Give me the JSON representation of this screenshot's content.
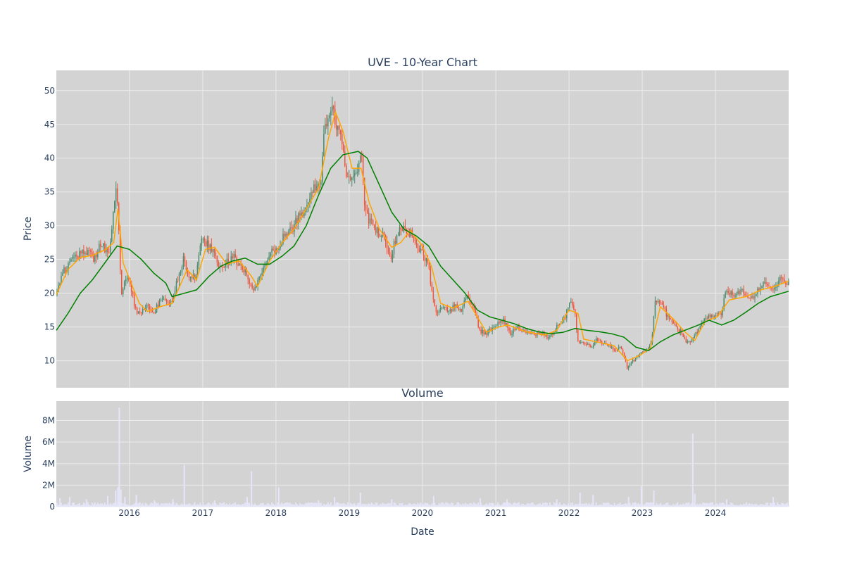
{
  "chart_data": [
    {
      "type": "candlestick",
      "title": "UVE - 10-Year Chart",
      "xlabel": "",
      "ylabel": "Price",
      "x_range": [
        "2015-01-02",
        "2024-12-31"
      ],
      "ylim": [
        6,
        53
      ],
      "y_ticks": [
        10,
        15,
        20,
        25,
        30,
        35,
        40,
        45,
        50
      ],
      "grid": true,
      "colors": {
        "plot_bg": "#d3d3d3",
        "grid": "#ebebeb",
        "increasing": "#4b8b6e",
        "decreasing": "#ef553b",
        "ma_short": "#ffa500",
        "ma_long": "#008000"
      },
      "price_path": [
        [
          "2015-01-02",
          19.8
        ],
        [
          "2015-02-15",
          23.5
        ],
        [
          "2015-03-15",
          24.5
        ],
        [
          "2015-04-15",
          25.5
        ],
        [
          "2015-05-15",
          26.2
        ],
        [
          "2015-06-15",
          26.0
        ],
        [
          "2015-07-15",
          25.0
        ],
        [
          "2015-08-15",
          27.5
        ],
        [
          "2015-09-15",
          26.0
        ],
        [
          "2015-10-01",
          27.0
        ],
        [
          "2015-10-20",
          33.0
        ],
        [
          "2015-11-01",
          36.0
        ],
        [
          "2015-11-10",
          31.0
        ],
        [
          "2015-11-25",
          20.0
        ],
        [
          "2015-12-15",
          22.5
        ],
        [
          "2016-01-10",
          21.5
        ],
        [
          "2016-02-01",
          17.5
        ],
        [
          "2016-03-01",
          17.0
        ],
        [
          "2016-04-01",
          18.5
        ],
        [
          "2016-05-01",
          17.0
        ],
        [
          "2016-06-01",
          18.5
        ],
        [
          "2016-07-01",
          19.0
        ],
        [
          "2016-08-01",
          18.5
        ],
        [
          "2016-09-01",
          22.0
        ],
        [
          "2016-10-01",
          25.0
        ],
        [
          "2016-11-01",
          22.0
        ],
        [
          "2016-12-01",
          22.5
        ],
        [
          "2017-01-01",
          28.0
        ],
        [
          "2017-02-01",
          27.0
        ],
        [
          "2017-03-01",
          26.5
        ],
        [
          "2017-04-01",
          23.5
        ],
        [
          "2017-05-01",
          24.5
        ],
        [
          "2017-06-01",
          25.5
        ],
        [
          "2017-07-01",
          24.5
        ],
        [
          "2017-08-01",
          23.5
        ],
        [
          "2017-08-20",
          22.0
        ],
        [
          "2017-09-15",
          20.5
        ],
        [
          "2017-10-15",
          22.5
        ],
        [
          "2017-11-15",
          24.0
        ],
        [
          "2017-12-15",
          26.0
        ],
        [
          "2018-01-15",
          26.5
        ],
        [
          "2018-02-15",
          28.5
        ],
        [
          "2018-03-15",
          29.0
        ],
        [
          "2018-04-15",
          30.5
        ],
        [
          "2018-05-15",
          32.0
        ],
        [
          "2018-06-15",
          33.5
        ],
        [
          "2018-07-15",
          35.5
        ],
        [
          "2018-08-15",
          36.0
        ],
        [
          "2018-09-01",
          44.5
        ],
        [
          "2018-10-01",
          45.5
        ],
        [
          "2018-10-15",
          49.0
        ],
        [
          "2018-11-01",
          44.0
        ],
        [
          "2018-12-01",
          43.0
        ],
        [
          "2018-12-20",
          38.0
        ],
        [
          "2019-01-20",
          37.5
        ],
        [
          "2019-02-20",
          39.0
        ],
        [
          "2019-03-10",
          41.0
        ],
        [
          "2019-03-25",
          32.0
        ],
        [
          "2019-05-01",
          30.0
        ],
        [
          "2019-06-01",
          29.0
        ],
        [
          "2019-07-01",
          28.0
        ],
        [
          "2019-08-01",
          25.5
        ],
        [
          "2019-09-01",
          29.0
        ],
        [
          "2019-10-01",
          29.5
        ],
        [
          "2019-11-01",
          29.0
        ],
        [
          "2019-12-01",
          28.0
        ],
        [
          "2020-01-01",
          26.0
        ],
        [
          "2020-02-01",
          24.5
        ],
        [
          "2020-02-20",
          20.0
        ],
        [
          "2020-03-15",
          17.0
        ],
        [
          "2020-04-15",
          18.0
        ],
        [
          "2020-05-15",
          17.5
        ],
        [
          "2020-06-15",
          18.0
        ],
        [
          "2020-07-15",
          17.5
        ],
        [
          "2020-08-15",
          19.5
        ],
        [
          "2020-09-15",
          18.0
        ],
        [
          "2020-10-15",
          14.5
        ],
        [
          "2020-11-15",
          14.0
        ],
        [
          "2020-12-15",
          14.8
        ],
        [
          "2021-01-15",
          15.3
        ],
        [
          "2021-02-15",
          16.0
        ],
        [
          "2021-03-15",
          14.0
        ],
        [
          "2021-04-15",
          15.0
        ],
        [
          "2021-05-15",
          14.5
        ],
        [
          "2021-06-15",
          14.0
        ],
        [
          "2021-07-15",
          13.8
        ],
        [
          "2021-08-15",
          14.0
        ],
        [
          "2021-09-15",
          13.5
        ],
        [
          "2021-10-15",
          14.0
        ],
        [
          "2021-11-15",
          15.5
        ],
        [
          "2021-12-15",
          16.5
        ],
        [
          "2022-01-10",
          19.0
        ],
        [
          "2022-02-01",
          17.5
        ],
        [
          "2022-02-20",
          12.5
        ],
        [
          "2022-03-20",
          12.5
        ],
        [
          "2022-04-20",
          12.0
        ],
        [
          "2022-05-20",
          13.0
        ],
        [
          "2022-06-20",
          12.5
        ],
        [
          "2022-07-20",
          12.5
        ],
        [
          "2022-08-20",
          11.5
        ],
        [
          "2022-09-20",
          12.0
        ],
        [
          "2022-10-20",
          9.0
        ],
        [
          "2022-11-20",
          10.0
        ],
        [
          "2022-12-20",
          11.0
        ],
        [
          "2023-01-20",
          11.5
        ],
        [
          "2023-02-20",
          12.5
        ],
        [
          "2023-03-10",
          19.0
        ],
        [
          "2023-04-10",
          18.5
        ],
        [
          "2023-05-10",
          16.5
        ],
        [
          "2023-06-10",
          15.5
        ],
        [
          "2023-07-10",
          14.5
        ],
        [
          "2023-08-10",
          13.0
        ],
        [
          "2023-09-10",
          13.0
        ],
        [
          "2023-10-10",
          14.5
        ],
        [
          "2023-11-10",
          16.5
        ],
        [
          "2023-12-10",
          16.5
        ],
        [
          "2024-01-10",
          17.0
        ],
        [
          "2024-02-01",
          16.5
        ],
        [
          "2024-02-20",
          20.0
        ],
        [
          "2024-03-20",
          20.0
        ],
        [
          "2024-04-20",
          20.0
        ],
        [
          "2024-05-20",
          20.5
        ],
        [
          "2024-06-20",
          19.0
        ],
        [
          "2024-07-20",
          20.0
        ],
        [
          "2024-08-20",
          21.0
        ],
        [
          "2024-09-20",
          21.5
        ],
        [
          "2024-10-20",
          20.5
        ],
        [
          "2024-11-20",
          22.5
        ],
        [
          "2024-12-31",
          21.5
        ]
      ],
      "ma_short": [
        [
          "2015-01-02",
          19.8
        ],
        [
          "2015-03-01",
          23.5
        ],
        [
          "2015-05-01",
          25.3
        ],
        [
          "2015-07-01",
          25.6
        ],
        [
          "2015-09-01",
          26.4
        ],
        [
          "2015-10-15",
          27.5
        ],
        [
          "2015-11-05",
          32.5
        ],
        [
          "2015-12-01",
          24.5
        ],
        [
          "2016-01-10",
          21.5
        ],
        [
          "2016-02-20",
          18.5
        ],
        [
          "2016-04-01",
          17.3
        ],
        [
          "2016-06-01",
          18.0
        ],
        [
          "2016-08-01",
          18.5
        ],
        [
          "2016-09-15",
          21.5
        ],
        [
          "2016-10-15",
          23.5
        ],
        [
          "2016-12-01",
          22.0
        ],
        [
          "2017-01-15",
          26.5
        ],
        [
          "2017-03-01",
          26.8
        ],
        [
          "2017-05-01",
          24.3
        ],
        [
          "2017-07-01",
          24.8
        ],
        [
          "2017-09-01",
          22.5
        ],
        [
          "2017-10-01",
          21.0
        ],
        [
          "2017-12-01",
          24.8
        ],
        [
          "2018-02-01",
          27.5
        ],
        [
          "2018-04-01",
          29.5
        ],
        [
          "2018-06-01",
          32.5
        ],
        [
          "2018-08-01",
          35.5
        ],
        [
          "2018-09-20",
          43.0
        ],
        [
          "2018-10-25",
          46.8
        ],
        [
          "2018-12-01",
          44.0
        ],
        [
          "2019-01-15",
          38.5
        ],
        [
          "2019-03-01",
          38.5
        ],
        [
          "2019-04-10",
          33.5
        ],
        [
          "2019-06-01",
          29.5
        ],
        [
          "2019-08-01",
          26.8
        ],
        [
          "2019-09-15",
          27.5
        ],
        [
          "2019-11-01",
          29.3
        ],
        [
          "2020-01-01",
          27.0
        ],
        [
          "2020-02-15",
          24.0
        ],
        [
          "2020-04-01",
          18.5
        ],
        [
          "2020-06-01",
          17.8
        ],
        [
          "2020-08-15",
          18.8
        ],
        [
          "2020-10-01",
          16.5
        ],
        [
          "2020-11-15",
          14.2
        ],
        [
          "2021-01-15",
          15.0
        ],
        [
          "2021-03-01",
          15.3
        ],
        [
          "2021-06-01",
          14.3
        ],
        [
          "2021-09-01",
          13.8
        ],
        [
          "2021-11-01",
          14.5
        ],
        [
          "2022-01-01",
          17.5
        ],
        [
          "2022-02-15",
          17.0
        ],
        [
          "2022-03-15",
          13.2
        ],
        [
          "2022-06-01",
          12.7
        ],
        [
          "2022-08-15",
          12.2
        ],
        [
          "2022-10-20",
          10.0
        ],
        [
          "2022-12-20",
          10.8
        ],
        [
          "2023-02-10",
          11.8
        ],
        [
          "2023-04-01",
          18.0
        ],
        [
          "2023-06-01",
          16.3
        ],
        [
          "2023-08-01",
          14.3
        ],
        [
          "2023-09-20",
          13.0
        ],
        [
          "2023-11-10",
          15.8
        ],
        [
          "2024-01-10",
          16.5
        ],
        [
          "2024-03-10",
          19.0
        ],
        [
          "2024-06-01",
          19.5
        ],
        [
          "2024-08-15",
          20.5
        ],
        [
          "2024-10-20",
          21.0
        ],
        [
          "2024-12-31",
          21.8
        ]
      ],
      "ma_long": [
        [
          "2015-01-02",
          14.5
        ],
        [
          "2015-03-01",
          17.0
        ],
        [
          "2015-05-01",
          20.0
        ],
        [
          "2015-07-01",
          22.0
        ],
        [
          "2015-09-01",
          24.5
        ],
        [
          "2015-11-01",
          27.0
        ],
        [
          "2016-01-01",
          26.5
        ],
        [
          "2016-03-01",
          25.0
        ],
        [
          "2016-05-01",
          23.0
        ],
        [
          "2016-07-01",
          21.5
        ],
        [
          "2016-08-01",
          19.5
        ],
        [
          "2016-10-01",
          20.0
        ],
        [
          "2016-12-01",
          20.5
        ],
        [
          "2017-02-01",
          22.5
        ],
        [
          "2017-04-01",
          24.0
        ],
        [
          "2017-06-01",
          24.8
        ],
        [
          "2017-08-01",
          25.2
        ],
        [
          "2017-10-01",
          24.3
        ],
        [
          "2017-12-01",
          24.3
        ],
        [
          "2018-02-01",
          25.5
        ],
        [
          "2018-04-01",
          27.0
        ],
        [
          "2018-06-01",
          30.0
        ],
        [
          "2018-08-01",
          34.5
        ],
        [
          "2018-10-01",
          38.5
        ],
        [
          "2018-12-01",
          40.5
        ],
        [
          "2019-02-15",
          41.0
        ],
        [
          "2019-04-01",
          40.0
        ],
        [
          "2019-06-01",
          36.0
        ],
        [
          "2019-08-01",
          32.0
        ],
        [
          "2019-10-01",
          29.5
        ],
        [
          "2019-12-01",
          28.5
        ],
        [
          "2020-02-01",
          27.0
        ],
        [
          "2020-04-01",
          24.0
        ],
        [
          "2020-06-01",
          22.0
        ],
        [
          "2020-08-01",
          20.0
        ],
        [
          "2020-10-01",
          17.5
        ],
        [
          "2020-12-01",
          16.5
        ],
        [
          "2021-02-01",
          16.0
        ],
        [
          "2021-04-01",
          15.5
        ],
        [
          "2021-06-01",
          14.8
        ],
        [
          "2021-08-01",
          14.3
        ],
        [
          "2021-10-01",
          14.0
        ],
        [
          "2021-12-01",
          14.2
        ],
        [
          "2022-02-01",
          14.8
        ],
        [
          "2022-04-01",
          14.5
        ],
        [
          "2022-06-01",
          14.3
        ],
        [
          "2022-08-01",
          14.0
        ],
        [
          "2022-10-01",
          13.5
        ],
        [
          "2022-12-01",
          12.0
        ],
        [
          "2023-02-01",
          11.5
        ],
        [
          "2023-04-01",
          12.8
        ],
        [
          "2023-06-01",
          13.8
        ],
        [
          "2023-08-01",
          14.5
        ],
        [
          "2023-10-01",
          15.2
        ],
        [
          "2023-12-01",
          16.0
        ],
        [
          "2024-02-01",
          15.3
        ],
        [
          "2024-04-01",
          16.0
        ],
        [
          "2024-06-01",
          17.2
        ],
        [
          "2024-08-01",
          18.5
        ],
        [
          "2024-10-01",
          19.5
        ],
        [
          "2024-12-31",
          20.3
        ]
      ]
    },
    {
      "type": "bar",
      "title": "Volume",
      "xlabel": "Date",
      "ylabel": "Volume",
      "x_range": [
        "2015-01-02",
        "2024-12-31"
      ],
      "ylim": [
        0,
        9800000
      ],
      "y_ticks": [
        0,
        2000000,
        4000000,
        6000000,
        8000000
      ],
      "y_tick_labels": [
        "0",
        "2M",
        "4M",
        "6M",
        "8M"
      ],
      "x_ticks": [
        "2016-01-01",
        "2017-01-01",
        "2018-01-01",
        "2019-01-01",
        "2020-01-01",
        "2021-01-01",
        "2022-01-01",
        "2023-01-01",
        "2024-01-01"
      ],
      "x_tick_labels": [
        "2016",
        "2017",
        "2018",
        "2019",
        "2020",
        "2021",
        "2022",
        "2023",
        "2024"
      ],
      "grid": true,
      "colors": {
        "bar": "#e6e6fa",
        "plot_bg": "#d3d3d3",
        "grid": "#ebebeb"
      },
      "baseline_volume": 250000,
      "spikes": [
        [
          "2015-01-20",
          800000
        ],
        [
          "2015-03-10",
          900000
        ],
        [
          "2015-06-01",
          700000
        ],
        [
          "2015-09-15",
          1000000
        ],
        [
          "2015-10-25",
          1500000
        ],
        [
          "2015-11-05",
          1800000
        ],
        [
          "2015-11-12",
          9200000
        ],
        [
          "2015-11-20",
          1600000
        ],
        [
          "2015-12-10",
          900000
        ],
        [
          "2016-02-05",
          1100000
        ],
        [
          "2016-05-05",
          600000
        ],
        [
          "2016-08-05",
          700000
        ],
        [
          "2016-10-01",
          3900000
        ],
        [
          "2017-03-01",
          600000
        ],
        [
          "2017-08-10",
          900000
        ],
        [
          "2017-09-01",
          3300000
        ],
        [
          "2018-01-15",
          1800000
        ],
        [
          "2018-08-01",
          600000
        ],
        [
          "2018-10-20",
          900000
        ],
        [
          "2019-02-26",
          1300000
        ],
        [
          "2019-08-01",
          700000
        ],
        [
          "2020-02-26",
          1000000
        ],
        [
          "2020-10-15",
          800000
        ],
        [
          "2021-02-26",
          700000
        ],
        [
          "2021-11-01",
          700000
        ],
        [
          "2022-02-25",
          1300000
        ],
        [
          "2022-05-01",
          1100000
        ],
        [
          "2022-10-25",
          900000
        ],
        [
          "2022-12-28",
          1900000
        ],
        [
          "2023-02-28",
          1500000
        ],
        [
          "2023-09-10",
          6800000
        ],
        [
          "2023-09-20",
          1200000
        ],
        [
          "2024-02-26",
          700000
        ],
        [
          "2024-10-15",
          900000
        ]
      ]
    }
  ]
}
